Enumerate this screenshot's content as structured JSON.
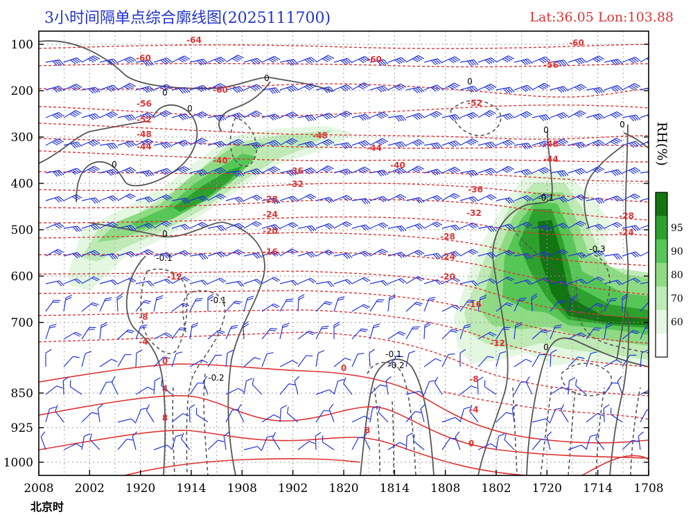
{
  "header": {
    "title": "3小时间隔单点综合廓线图(2025111700)",
    "latlon": "Lat:36.05  Lon:103.88",
    "time_axis_label": "北京时"
  },
  "colors": {
    "temperature": "#dd3333",
    "vertical_velocity": "#555555",
    "wind_barb": "#2233dd",
    "title": "#2233cc",
    "rh_levels": [
      "#ffffff",
      "#e4f7e1",
      "#bfeab6",
      "#8edb83",
      "#56c656",
      "#2da02d",
      "#127512"
    ]
  },
  "chart_data": {
    "type": "heatmap",
    "title": "3小时间隔单点综合廓线图(2025111700)",
    "subtitle": "Lat:36.05  Lon:103.88",
    "xlabel": "北京时",
    "ylabel": "",
    "x_ticks": [
      "2008",
      "2002",
      "1920",
      "1914",
      "1908",
      "1902",
      "1820",
      "1814",
      "1808",
      "1802",
      "1720",
      "1714",
      "1708"
    ],
    "y_ticks": [
      100,
      200,
      300,
      400,
      500,
      600,
      700,
      850,
      925,
      1000
    ],
    "y_range": [
      100,
      1000
    ],
    "grid": true,
    "colorbar": {
      "title": "RH(%)",
      "ticks": [
        60,
        70,
        80,
        90,
        95
      ],
      "levels": [
        50,
        60,
        70,
        80,
        90,
        95,
        100
      ]
    },
    "temperature_labels": [
      "-64",
      "-60",
      "-60",
      "-60",
      "-60",
      "-56",
      "-56",
      "-52",
      "-52",
      "-48",
      "-48",
      "-48",
      "-44",
      "-44",
      "-44",
      "-40",
      "-40",
      "-36",
      "-36",
      "-32",
      "-32",
      "-28",
      "-28",
      "-28",
      "-24",
      "-24",
      "-24",
      "-20",
      "-20",
      "-16",
      "-16",
      "-12",
      "-12",
      "-8",
      "-8",
      "-4",
      "-4",
      "0",
      "0",
      "0",
      "4",
      "8",
      "8"
    ],
    "vertical_velocity_labels": [
      "0",
      "0",
      "0",
      "0",
      "0",
      "0",
      "0",
      "0",
      "0",
      "-0.1",
      "-0.1",
      "-0.1",
      "-0.1",
      "-0.2",
      "-0.2",
      "-0.3"
    ]
  }
}
